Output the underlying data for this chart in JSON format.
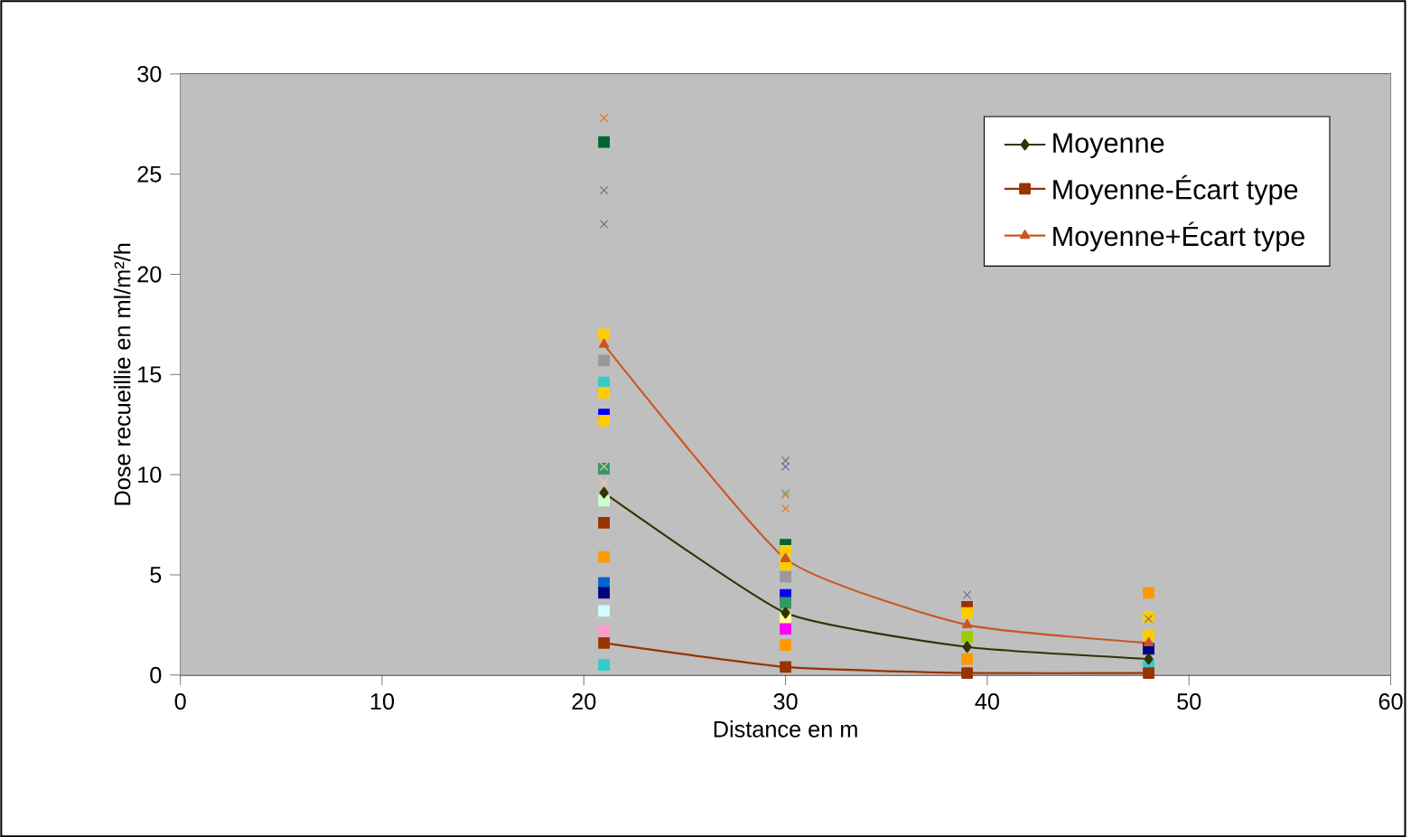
{
  "chart_data": {
    "type": "line",
    "xlabel": "Distance en m",
    "ylabel": "Dose recueillie en ml/m²/h",
    "xlim": [
      0,
      60
    ],
    "xticks": [
      0,
      10,
      20,
      30,
      40,
      50,
      60
    ],
    "ylim": [
      0,
      30
    ],
    "yticks": [
      0,
      5,
      10,
      15,
      20,
      25,
      30
    ],
    "grid": "y",
    "legend": "top right",
    "line_style": "solid",
    "series": [
      {
        "type": "scatter",
        "marker": "square",
        "x": [
          21,
          21,
          21,
          21,
          21,
          21,
          21,
          21,
          21,
          21,
          21,
          21,
          21,
          21,
          21,
          21,
          30,
          30,
          30,
          30,
          30,
          30,
          30,
          30,
          30,
          39,
          39,
          39,
          39,
          48,
          48,
          48,
          48,
          48
        ],
        "values": [
          26.6,
          17.0,
          15.7,
          14.6,
          14.1,
          13.0,
          12.7,
          10.3,
          8.7,
          7.6,
          5.9,
          4.6,
          4.1,
          3.2,
          2.2,
          0.5,
          6.5,
          6.2,
          5.5,
          4.9,
          4.0,
          3.6,
          2.8,
          2.3,
          1.5,
          3.4,
          3.1,
          1.9,
          0.8,
          4.1,
          2.9,
          2.0,
          1.3,
          0.5
        ],
        "colors": [
          "#006633",
          "#FFCC00",
          "#999999",
          "#33CCCC",
          "#FFCC00",
          "#0000FF",
          "#FFCC00",
          "#339966",
          "#CCFFCC",
          "#993300",
          "#FF9900",
          "#0066CC",
          "#000080",
          "#CCFFFF",
          "#FF99CC",
          "#33CCCC",
          "#006633",
          "#FFCC00",
          "#FFCC00",
          "#999999",
          "#0000FF",
          "#339966",
          "#FFFF99",
          "#FF00FF",
          "#FF9900",
          "#993300",
          "#FFCC00",
          "#99CC00",
          "#FF9900",
          "#FF9900",
          "#FFCC00",
          "#FFCC00",
          "#000080",
          "#33CCCC"
        ]
      },
      {
        "type": "scatter",
        "marker": "cross",
        "x": [
          21,
          21,
          21,
          21,
          21,
          30,
          30,
          30,
          30,
          30,
          39,
          48
        ],
        "values": [
          27.8,
          24.2,
          22.5,
          10.4,
          9.6,
          10.7,
          10.4,
          9.1,
          9.0,
          8.3,
          4.0,
          2.8
        ],
        "colors": [
          "#FF6600",
          "#666699",
          "#666699",
          "#FFCC99",
          "#FFCC99",
          "#666699",
          "#666699",
          "#33CCCC",
          "#FF6600",
          "#FF6600",
          "#666699",
          "#666699"
        ]
      },
      {
        "name": "Moyenne",
        "color": "#333300",
        "marker": "diamond",
        "x": [
          21,
          30,
          39,
          48
        ],
        "values": [
          9.1,
          3.1,
          1.4,
          0.8
        ]
      },
      {
        "name": "Moyenne-Écart type",
        "color": "#993300",
        "marker": "square",
        "x": [
          21,
          30,
          39,
          48
        ],
        "values": [
          1.6,
          0.4,
          0.1,
          0.1
        ]
      },
      {
        "name": "Moyenne+Écart type",
        "color": "#CC5522",
        "marker": "triangle",
        "x": [
          21,
          30,
          39,
          48
        ],
        "values": [
          16.5,
          5.8,
          2.5,
          1.6
        ]
      }
    ]
  }
}
